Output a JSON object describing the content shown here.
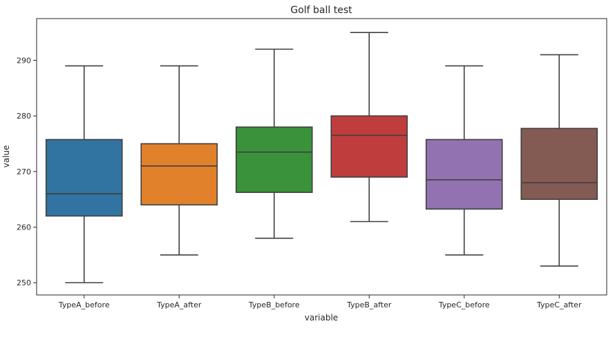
{
  "chart_data": {
    "type": "box",
    "title": "Golf ball test",
    "xlabel": "variable",
    "ylabel": "value",
    "ylim": [
      247.8,
      297.5
    ],
    "yticks": [
      250,
      260,
      270,
      280,
      290
    ],
    "legend": "none",
    "grid": false,
    "categories": [
      "TypeA_before",
      "TypeA_after",
      "TypeB_before",
      "TypeB_after",
      "TypeC_before",
      "TypeC_after"
    ],
    "series": [
      {
        "category": "TypeA_before",
        "min": 250,
        "q1": 262,
        "median": 266,
        "q3": 275.75,
        "max": 289,
        "color": "#3274a1"
      },
      {
        "category": "TypeA_after",
        "min": 255,
        "q1": 264,
        "median": 271,
        "q3": 275,
        "max": 289,
        "color": "#e1812c"
      },
      {
        "category": "TypeB_before",
        "min": 258,
        "q1": 266.25,
        "median": 273.5,
        "q3": 278,
        "max": 292,
        "color": "#3a923a"
      },
      {
        "category": "TypeB_after",
        "min": 261,
        "q1": 269,
        "median": 276.5,
        "q3": 280,
        "max": 295,
        "color": "#c03d3e"
      },
      {
        "category": "TypeC_before",
        "min": 255,
        "q1": 263.25,
        "median": 268.5,
        "q3": 275.75,
        "max": 289,
        "color": "#9372b2"
      },
      {
        "category": "TypeC_after",
        "min": 253,
        "q1": 265,
        "median": 268,
        "q3": 277.75,
        "max": 291,
        "color": "#845b53"
      }
    ]
  }
}
